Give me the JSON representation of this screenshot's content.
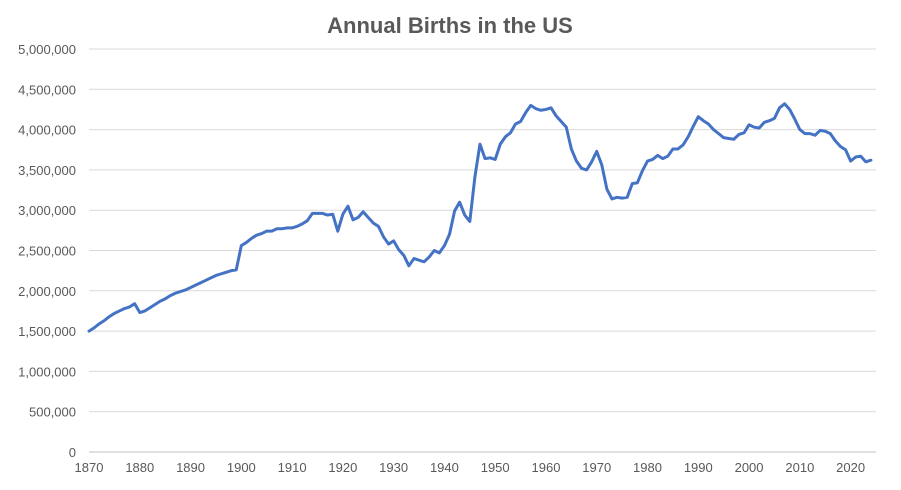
{
  "chart_data": {
    "type": "line",
    "title": "Annual Births in the US",
    "xlabel": "",
    "ylabel": "",
    "xlim": [
      1870,
      2025
    ],
    "ylim": [
      0,
      5000000
    ],
    "x_ticks": [
      "1870",
      "1880",
      "1890",
      "1900",
      "1910",
      "1920",
      "1930",
      "1940",
      "1950",
      "1960",
      "1970",
      "1980",
      "1990",
      "2000",
      "2010",
      "2020"
    ],
    "y_ticks": [
      "0",
      "500,000",
      "1,000,000",
      "1,500,000",
      "2,000,000",
      "2,500,000",
      "3,000,000",
      "3,500,000",
      "4,000,000",
      "4,500,000",
      "5,000,000"
    ],
    "grid": true,
    "legend": "none",
    "line_color": "#4472c4",
    "series": [
      {
        "x": [
          1870,
          1871,
          1872,
          1873,
          1874,
          1875,
          1876,
          1877,
          1878,
          1879,
          1880,
          1881,
          1882,
          1883,
          1884,
          1885,
          1886,
          1887,
          1888,
          1889,
          1890,
          1891,
          1892,
          1893,
          1894,
          1895,
          1896,
          1897,
          1898,
          1899,
          1900,
          1901,
          1902,
          1903,
          1904,
          1905,
          1906,
          1907,
          1908,
          1909,
          1910,
          1911,
          1912,
          1913,
          1914,
          1915,
          1916,
          1917,
          1918,
          1919,
          1920,
          1921,
          1922,
          1923,
          1924,
          1925,
          1926,
          1927,
          1928,
          1929,
          1930,
          1931,
          1932,
          1933,
          1934,
          1935,
          1936,
          1937,
          1938,
          1939,
          1940,
          1941,
          1942,
          1943,
          1944,
          1945,
          1946,
          1947,
          1948,
          1949,
          1950,
          1951,
          1952,
          1953,
          1954,
          1955,
          1956,
          1957,
          1958,
          1959,
          1960,
          1961,
          1962,
          1963,
          1964,
          1965,
          1966,
          1967,
          1968,
          1969,
          1970,
          1971,
          1972,
          1973,
          1974,
          1975,
          1976,
          1977,
          1978,
          1979,
          1980,
          1981,
          1982,
          1983,
          1984,
          1985,
          1986,
          1987,
          1988,
          1989,
          1990,
          1991,
          1992,
          1993,
          1994,
          1995,
          1996,
          1997,
          1998,
          1999,
          2000,
          2001,
          2002,
          2003,
          2004,
          2005,
          2006,
          2007,
          2008,
          2009,
          2010,
          2011,
          2012,
          2013,
          2014,
          2015,
          2016,
          2017,
          2018,
          2019,
          2020,
          2021,
          2022,
          2023,
          2024
        ],
        "values": [
          1500000,
          1540000,
          1590000,
          1630000,
          1680000,
          1720000,
          1750000,
          1780000,
          1800000,
          1840000,
          1730000,
          1750000,
          1790000,
          1830000,
          1870000,
          1900000,
          1940000,
          1970000,
          1990000,
          2010000,
          2040000,
          2070000,
          2100000,
          2130000,
          2160000,
          2190000,
          2210000,
          2230000,
          2250000,
          2260000,
          2560000,
          2600000,
          2650000,
          2690000,
          2710000,
          2740000,
          2740000,
          2770000,
          2770000,
          2780000,
          2780000,
          2800000,
          2830000,
          2870000,
          2960000,
          2960000,
          2960000,
          2940000,
          2950000,
          2740000,
          2950000,
          3050000,
          2880000,
          2910000,
          2980000,
          2910000,
          2840000,
          2800000,
          2670000,
          2580000,
          2620000,
          2510000,
          2440000,
          2310000,
          2400000,
          2380000,
          2360000,
          2420000,
          2500000,
          2470000,
          2560000,
          2700000,
          2990000,
          3100000,
          2940000,
          2860000,
          3410000,
          3820000,
          3640000,
          3650000,
          3630000,
          3820000,
          3910000,
          3960000,
          4070000,
          4100000,
          4210000,
          4300000,
          4260000,
          4240000,
          4250000,
          4270000,
          4170000,
          4100000,
          4030000,
          3760000,
          3610000,
          3520000,
          3500000,
          3600000,
          3730000,
          3560000,
          3260000,
          3140000,
          3160000,
          3150000,
          3160000,
          3330000,
          3340000,
          3490000,
          3610000,
          3630000,
          3680000,
          3640000,
          3670000,
          3760000,
          3760000,
          3810000,
          3910000,
          4040000,
          4160000,
          4110000,
          4070000,
          4000000,
          3950000,
          3900000,
          3890000,
          3880000,
          3940000,
          3960000,
          4060000,
          4030000,
          4020000,
          4090000,
          4110000,
          4140000,
          4270000,
          4320000,
          4250000,
          4130000,
          4000000,
          3950000,
          3950000,
          3930000,
          3990000,
          3980000,
          3950000,
          3860000,
          3790000,
          3750000,
          3610000,
          3660000,
          3670000,
          3600000,
          3620000
        ]
      }
    ]
  }
}
